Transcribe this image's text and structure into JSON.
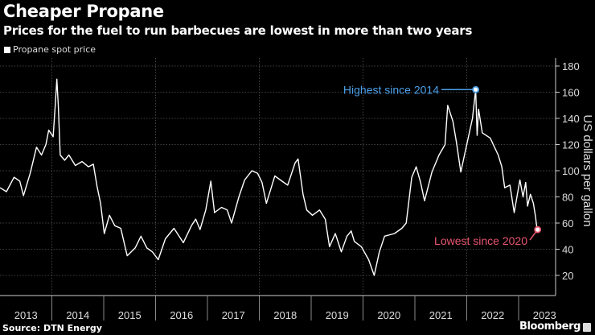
{
  "header": {
    "title": "Cheaper Propane",
    "subtitle": "Prices for the fuel to run barbecues are lowest in more than two years"
  },
  "footer": {
    "source": "Source: DTN Energy",
    "brand": "Bloomberg"
  },
  "chart_data": {
    "type": "line",
    "title": "Cheaper Propane",
    "subtitle": "Prices for the fuel to run barbecues are lowest in more than two years",
    "ylabel": "US dollars per gallon",
    "ylim": [
      10,
      185
    ],
    "yticks": [
      20,
      40,
      60,
      80,
      100,
      120,
      140,
      160,
      180
    ],
    "xticks": [
      "2013",
      "2014",
      "2015",
      "2016",
      "2017",
      "2018",
      "2019",
      "2020",
      "2021",
      "2022",
      "2023"
    ],
    "xlim": [
      "2013-01-01",
      "2023-09-01"
    ],
    "grid": true,
    "y_axis_side": "right",
    "legend_placement": "top-left",
    "colors": {
      "line": "#ffffff",
      "high": "#4a9fe8",
      "low": "#e8566e",
      "grid": "#555555"
    },
    "annotations": [
      {
        "label": "Highest since 2014",
        "date": "2022-03-05",
        "value": 162,
        "color": "#4a9fe8"
      },
      {
        "label": "Lowest since 2020",
        "date": "2023-05-15",
        "value": 55,
        "color": "#e8566e"
      }
    ],
    "series": [
      {
        "name": "Propane spot price",
        "points": [
          [
            "2013-01-01",
            87
          ],
          [
            "2013-02-15",
            84
          ],
          [
            "2013-04-10",
            95
          ],
          [
            "2013-05-20",
            92
          ],
          [
            "2013-06-15",
            81
          ],
          [
            "2013-08-01",
            98
          ],
          [
            "2013-09-15",
            118
          ],
          [
            "2013-10-20",
            112
          ],
          [
            "2013-11-20",
            120
          ],
          [
            "2013-12-10",
            131
          ],
          [
            "2014-01-10",
            126
          ],
          [
            "2014-01-25",
            150
          ],
          [
            "2014-02-05",
            170
          ],
          [
            "2014-02-15",
            150
          ],
          [
            "2014-03-01",
            112
          ],
          [
            "2014-04-01",
            108
          ],
          [
            "2014-05-01",
            112
          ],
          [
            "2014-06-15",
            104
          ],
          [
            "2014-08-01",
            107
          ],
          [
            "2014-09-15",
            103
          ],
          [
            "2014-10-20",
            105
          ],
          [
            "2014-11-15",
            88
          ],
          [
            "2014-12-10",
            75
          ],
          [
            "2015-01-05",
            52
          ],
          [
            "2015-02-10",
            66
          ],
          [
            "2015-03-20",
            58
          ],
          [
            "2015-05-01",
            56
          ],
          [
            "2015-06-15",
            35
          ],
          [
            "2015-08-10",
            41
          ],
          [
            "2015-09-20",
            50
          ],
          [
            "2015-11-01",
            41
          ],
          [
            "2015-12-10",
            38
          ],
          [
            "2016-01-20",
            32
          ],
          [
            "2016-03-10",
            48
          ],
          [
            "2016-05-10",
            56
          ],
          [
            "2016-07-15",
            45
          ],
          [
            "2016-09-10",
            58
          ],
          [
            "2016-10-10",
            63
          ],
          [
            "2016-11-10",
            55
          ],
          [
            "2016-12-20",
            70
          ],
          [
            "2017-01-25",
            92
          ],
          [
            "2017-02-20",
            68
          ],
          [
            "2017-04-10",
            72
          ],
          [
            "2017-05-20",
            70
          ],
          [
            "2017-06-20",
            60
          ],
          [
            "2017-08-10",
            80
          ],
          [
            "2017-09-20",
            93
          ],
          [
            "2017-11-10",
            100
          ],
          [
            "2017-12-20",
            98
          ],
          [
            "2018-01-20",
            91
          ],
          [
            "2018-02-20",
            75
          ],
          [
            "2018-04-20",
            96
          ],
          [
            "2018-06-10",
            92
          ],
          [
            "2018-07-20",
            89
          ],
          [
            "2018-09-10",
            106
          ],
          [
            "2018-10-01",
            109
          ],
          [
            "2018-11-05",
            82
          ],
          [
            "2018-12-01",
            70
          ],
          [
            "2019-01-10",
            66
          ],
          [
            "2019-03-01",
            70
          ],
          [
            "2019-04-10",
            63
          ],
          [
            "2019-05-10",
            42
          ],
          [
            "2019-06-20",
            52
          ],
          [
            "2019-08-01",
            38
          ],
          [
            "2019-09-10",
            50
          ],
          [
            "2019-10-10",
            54
          ],
          [
            "2019-11-01",
            46
          ],
          [
            "2019-12-20",
            42
          ],
          [
            "2020-02-10",
            32
          ],
          [
            "2020-03-20",
            20
          ],
          [
            "2020-04-25",
            38
          ],
          [
            "2020-06-01",
            50
          ],
          [
            "2020-08-10",
            52
          ],
          [
            "2020-10-01",
            56
          ],
          [
            "2020-11-01",
            60
          ],
          [
            "2020-12-10",
            95
          ],
          [
            "2021-01-10",
            103
          ],
          [
            "2021-02-10",
            91
          ],
          [
            "2021-03-10",
            77
          ],
          [
            "2021-05-01",
            99
          ],
          [
            "2021-06-20",
            112
          ],
          [
            "2021-08-01",
            120
          ],
          [
            "2021-08-20",
            150
          ],
          [
            "2021-09-25",
            138
          ],
          [
            "2021-10-20",
            122
          ],
          [
            "2021-11-20",
            99
          ],
          [
            "2022-01-05",
            122
          ],
          [
            "2022-02-10",
            140
          ],
          [
            "2022-03-05",
            162
          ],
          [
            "2022-03-15",
            127
          ],
          [
            "2022-03-25",
            147
          ],
          [
            "2022-04-20",
            129
          ],
          [
            "2022-06-15",
            125
          ],
          [
            "2022-08-10",
            112
          ],
          [
            "2022-09-05",
            103
          ],
          [
            "2022-09-25",
            87
          ],
          [
            "2022-11-01",
            89
          ],
          [
            "2022-12-01",
            68
          ],
          [
            "2023-01-10",
            93
          ],
          [
            "2023-02-01",
            80
          ],
          [
            "2023-02-20",
            91
          ],
          [
            "2023-03-05",
            73
          ],
          [
            "2023-03-25",
            82
          ],
          [
            "2023-04-15",
            75
          ],
          [
            "2023-04-30",
            65
          ],
          [
            "2023-05-08",
            58
          ],
          [
            "2023-05-15",
            55
          ]
        ]
      }
    ]
  }
}
